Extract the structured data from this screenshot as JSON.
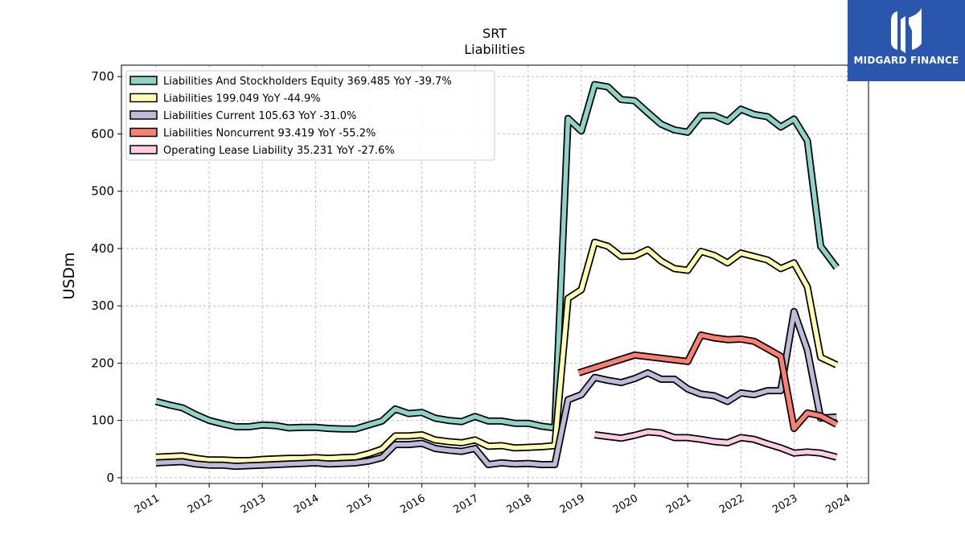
{
  "header": {
    "title": "SRT",
    "subtitle": "Liabilities"
  },
  "brand": {
    "name": "MIDGARD FINANCE",
    "icon": "midgard-logo-icon",
    "color": "#2a56ad"
  },
  "chart_data": {
    "type": "line",
    "title": "SRT",
    "subtitle": "Liabilities",
    "ylabel": "USDm",
    "xlabel": "",
    "ylim": [
      -10,
      720
    ],
    "xlim": [
      2010.35,
      2024.4
    ],
    "yticks": [
      0,
      100,
      200,
      300,
      400,
      500,
      600,
      700
    ],
    "xticks": [
      "2011",
      "2012",
      "2013",
      "2014",
      "2015",
      "2016",
      "2017",
      "2018",
      "2019",
      "2020",
      "2021",
      "2022",
      "2023",
      "2024"
    ],
    "grid": true,
    "legend_position": "top-left",
    "series": [
      {
        "name": "Liabilities And Stockholders Equity",
        "legend": "Liabilities And Stockholders Equity  369.485 YoY -39.7%",
        "color": "#8dd3c7",
        "x": [
          2011.0,
          2011.25,
          2011.5,
          2011.75,
          2012.0,
          2012.25,
          2012.5,
          2012.75,
          2013.0,
          2013.25,
          2013.5,
          2013.75,
          2014.0,
          2014.25,
          2014.5,
          2014.75,
          2015.0,
          2015.25,
          2015.5,
          2015.75,
          2016.0,
          2016.25,
          2016.5,
          2016.75,
          2017.0,
          2017.25,
          2017.5,
          2017.75,
          2018.0,
          2018.25,
          2018.5,
          2018.75,
          2019.0,
          2019.25,
          2019.5,
          2019.75,
          2020.0,
          2020.25,
          2020.5,
          2020.75,
          2021.0,
          2021.25,
          2021.5,
          2021.75,
          2022.0,
          2022.25,
          2022.5,
          2022.75,
          2023.0,
          2023.25,
          2023.5,
          2023.8
        ],
        "y": [
          133,
          127,
          122,
          110,
          100,
          94,
          89,
          89,
          92,
          91,
          87,
          88,
          88,
          86,
          85,
          85,
          92,
          99,
          120,
          112,
          114,
          104,
          100,
          98,
          107,
          99,
          99,
          95,
          95,
          90,
          87,
          627,
          605,
          686,
          682,
          660,
          658,
          637,
          617,
          607,
          603,
          632,
          632,
          622,
          643,
          634,
          630,
          612,
          626,
          588,
          404,
          367
        ]
      },
      {
        "name": "Liabilities",
        "legend": "Liabilities  199.049 YoY -44.9%",
        "color": "#ffffb3",
        "x": [
          2011.0,
          2011.25,
          2011.5,
          2011.75,
          2012.0,
          2012.25,
          2012.5,
          2012.75,
          2013.0,
          2013.25,
          2013.5,
          2013.75,
          2014.0,
          2014.25,
          2014.5,
          2014.75,
          2015.0,
          2015.25,
          2015.5,
          2015.75,
          2016.0,
          2016.25,
          2016.5,
          2016.75,
          2017.0,
          2017.25,
          2017.5,
          2017.75,
          2018.0,
          2018.25,
          2018.5,
          2018.75,
          2019.0,
          2019.25,
          2019.5,
          2019.75,
          2020.0,
          2020.25,
          2020.5,
          2020.75,
          2021.0,
          2021.25,
          2021.5,
          2021.75,
          2022.0,
          2022.25,
          2022.5,
          2022.75,
          2023.0,
          2023.25,
          2023.5,
          2023.8
        ],
        "y": [
          36,
          37,
          38,
          34,
          31,
          31,
          30,
          30,
          32,
          33,
          34,
          34,
          35,
          34,
          35,
          36,
          42,
          50,
          73,
          73,
          75,
          66,
          63,
          61,
          66,
          55,
          56,
          52,
          53,
          54,
          56,
          313,
          328,
          411,
          404,
          386,
          387,
          398,
          378,
          365,
          362,
          395,
          388,
          375,
          392,
          386,
          380,
          365,
          375,
          333,
          210,
          197
        ]
      },
      {
        "name": "Liabilities Current",
        "legend": "Liabilities Current  105.63 YoY -31.0%",
        "color": "#bebada",
        "x": [
          2011.0,
          2011.25,
          2011.5,
          2011.75,
          2012.0,
          2012.25,
          2012.5,
          2012.75,
          2013.0,
          2013.25,
          2013.5,
          2013.75,
          2014.0,
          2014.25,
          2014.5,
          2014.75,
          2015.0,
          2015.25,
          2015.5,
          2015.75,
          2016.0,
          2016.25,
          2016.5,
          2016.75,
          2017.0,
          2017.25,
          2017.5,
          2017.75,
          2018.0,
          2018.25,
          2018.5,
          2018.75,
          2019.0,
          2019.25,
          2019.5,
          2019.75,
          2020.0,
          2020.25,
          2020.5,
          2020.75,
          2021.0,
          2021.25,
          2021.5,
          2021.75,
          2022.0,
          2022.25,
          2022.5,
          2022.75,
          2023.0,
          2023.25,
          2023.5,
          2023.8
        ],
        "y": [
          26,
          27,
          28,
          24,
          22,
          22,
          20,
          21,
          22,
          23,
          24,
          25,
          26,
          24,
          25,
          26,
          29,
          35,
          58,
          58,
          60,
          51,
          48,
          46,
          51,
          23,
          26,
          24,
          25,
          23,
          23,
          136,
          145,
          175,
          170,
          166,
          173,
          183,
          172,
          172,
          155,
          146,
          143,
          133,
          148,
          145,
          152,
          152,
          290,
          223,
          104,
          106
        ]
      },
      {
        "name": "Liabilities Noncurrent",
        "legend": "Liabilities Noncurrent  93.419 YoY -55.2%",
        "color": "#fb8072",
        "x": [
          2018.95,
          2020.0,
          2021.0,
          2021.25,
          2021.5,
          2021.75,
          2022.0,
          2022.25,
          2022.5,
          2022.75,
          2023.0,
          2023.25,
          2023.5,
          2023.8
        ],
        "y": [
          183,
          214,
          203,
          249,
          244,
          241,
          242,
          238,
          225,
          212,
          86,
          113,
          108,
          93
        ]
      },
      {
        "name": "Operating Lease Liability",
        "legend": "Operating Lease Liability  35.231 YoY -27.6%",
        "color": "#fccde5",
        "x": [
          2019.25,
          2019.5,
          2019.75,
          2020.0,
          2020.25,
          2020.5,
          2020.75,
          2021.0,
          2021.25,
          2021.5,
          2021.75,
          2022.0,
          2022.25,
          2022.5,
          2022.75,
          2023.0,
          2023.25,
          2023.5,
          2023.8
        ],
        "y": [
          75,
          72,
          69,
          74,
          80,
          78,
          70,
          70,
          67,
          63,
          61,
          70,
          67,
          59,
          52,
          43,
          45,
          43,
          36
        ]
      }
    ]
  }
}
